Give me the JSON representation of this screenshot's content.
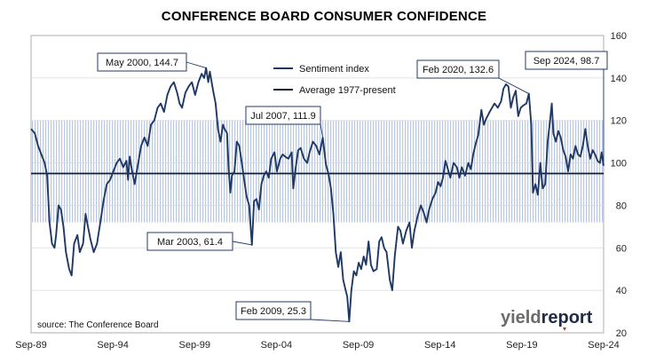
{
  "chart_data": {
    "type": "line",
    "title": "CONFERENCE BOARD CONSUMER CONFIDENCE",
    "x_tick_labels": [
      "Sep-89",
      "Sep-94",
      "Sep-99",
      "Sep-04",
      "Sep-09",
      "Sep-14",
      "Sep-19",
      "Sep-24"
    ],
    "x_range": [
      1989.67,
      2024.67
    ],
    "ylim": [
      20,
      160
    ],
    "y_ticks": [
      20,
      40,
      60,
      80,
      100,
      120,
      140,
      160
    ],
    "y_axis_side": "right",
    "shaded_band": [
      72,
      120
    ],
    "average_value": 95,
    "series": [
      {
        "name": "Sentiment index",
        "color": "#1f3864",
        "points": [
          [
            1989.67,
            116
          ],
          [
            1989.9,
            114
          ],
          [
            1990.1,
            108
          ],
          [
            1990.3,
            104
          ],
          [
            1990.5,
            100
          ],
          [
            1990.65,
            94
          ],
          [
            1990.8,
            72
          ],
          [
            1990.95,
            62
          ],
          [
            1991.1,
            60
          ],
          [
            1991.2,
            66
          ],
          [
            1991.35,
            80
          ],
          [
            1991.5,
            78
          ],
          [
            1991.65,
            70
          ],
          [
            1991.8,
            58
          ],
          [
            1992.0,
            50
          ],
          [
            1992.15,
            47
          ],
          [
            1992.3,
            62
          ],
          [
            1992.5,
            66
          ],
          [
            1992.65,
            58
          ],
          [
            1992.85,
            62
          ],
          [
            1993.0,
            76
          ],
          [
            1993.15,
            70
          ],
          [
            1993.3,
            64
          ],
          [
            1993.5,
            58
          ],
          [
            1993.7,
            62
          ],
          [
            1993.9,
            72
          ],
          [
            1994.1,
            82
          ],
          [
            1994.3,
            90
          ],
          [
            1994.5,
            92
          ],
          [
            1994.7,
            96
          ],
          [
            1994.9,
            100
          ],
          [
            1995.1,
            102
          ],
          [
            1995.3,
            98
          ],
          [
            1995.5,
            101
          ],
          [
            1995.6,
            92
          ],
          [
            1995.7,
            103
          ],
          [
            1995.85,
            96
          ],
          [
            1996.0,
            90
          ],
          [
            1996.2,
            99
          ],
          [
            1996.4,
            108
          ],
          [
            1996.6,
            112
          ],
          [
            1996.8,
            108
          ],
          [
            1997.0,
            118
          ],
          [
            1997.2,
            120
          ],
          [
            1997.4,
            126
          ],
          [
            1997.6,
            128
          ],
          [
            1997.8,
            124
          ],
          [
            1998.0,
            132
          ],
          [
            1998.2,
            136
          ],
          [
            1998.4,
            138
          ],
          [
            1998.6,
            133
          ],
          [
            1998.75,
            128
          ],
          [
            1998.9,
            126
          ],
          [
            1999.1,
            133
          ],
          [
            1999.3,
            136
          ],
          [
            1999.5,
            138
          ],
          [
            1999.7,
            132
          ],
          [
            1999.9,
            138
          ],
          [
            2000.1,
            142
          ],
          [
            2000.25,
            140
          ],
          [
            2000.37,
            144.7
          ],
          [
            2000.5,
            138
          ],
          [
            2000.6,
            143
          ],
          [
            2000.8,
            134
          ],
          [
            2000.95,
            128
          ],
          [
            2001.1,
            116
          ],
          [
            2001.25,
            110
          ],
          [
            2001.4,
            118
          ],
          [
            2001.5,
            116
          ],
          [
            2001.65,
            114
          ],
          [
            2001.75,
            97
          ],
          [
            2001.85,
            86
          ],
          [
            2001.95,
            94
          ],
          [
            2002.1,
            96
          ],
          [
            2002.25,
            110
          ],
          [
            2002.4,
            108
          ],
          [
            2002.55,
            100
          ],
          [
            2002.7,
            92
          ],
          [
            2002.85,
            84
          ],
          [
            2003.0,
            80
          ],
          [
            2003.1,
            69
          ],
          [
            2003.17,
            61.4
          ],
          [
            2003.3,
            82
          ],
          [
            2003.45,
            83
          ],
          [
            2003.6,
            78
          ],
          [
            2003.75,
            90
          ],
          [
            2003.9,
            94
          ],
          [
            2004.05,
            96
          ],
          [
            2004.2,
            93
          ],
          [
            2004.35,
            102
          ],
          [
            2004.55,
            105
          ],
          [
            2004.7,
            96
          ],
          [
            2004.9,
            102
          ],
          [
            2005.05,
            104
          ],
          [
            2005.2,
            103
          ],
          [
            2005.4,
            102
          ],
          [
            2005.6,
            105
          ],
          [
            2005.7,
            88
          ],
          [
            2005.85,
            98
          ],
          [
            2006.0,
            106
          ],
          [
            2006.15,
            107
          ],
          [
            2006.35,
            102
          ],
          [
            2006.55,
            100
          ],
          [
            2006.7,
            105
          ],
          [
            2006.9,
            110
          ],
          [
            2007.1,
            108
          ],
          [
            2007.3,
            104
          ],
          [
            2007.5,
            111.9
          ],
          [
            2007.7,
            99
          ],
          [
            2007.85,
            95
          ],
          [
            2008.0,
            88
          ],
          [
            2008.15,
            76
          ],
          [
            2008.3,
            58
          ],
          [
            2008.45,
            51
          ],
          [
            2008.6,
            58
          ],
          [
            2008.75,
            45
          ],
          [
            2008.9,
            40
          ],
          [
            2009.0,
            37
          ],
          [
            2009.12,
            25.3
          ],
          [
            2009.25,
            40
          ],
          [
            2009.4,
            49
          ],
          [
            2009.55,
            47
          ],
          [
            2009.7,
            53
          ],
          [
            2009.85,
            50
          ],
          [
            2010.0,
            56
          ],
          [
            2010.15,
            52
          ],
          [
            2010.3,
            63
          ],
          [
            2010.45,
            52
          ],
          [
            2010.6,
            49
          ],
          [
            2010.8,
            50
          ],
          [
            2010.95,
            63
          ],
          [
            2011.1,
            65
          ],
          [
            2011.25,
            60
          ],
          [
            2011.4,
            58
          ],
          [
            2011.6,
            45
          ],
          [
            2011.75,
            40
          ],
          [
            2011.9,
            56
          ],
          [
            2012.1,
            70
          ],
          [
            2012.25,
            68
          ],
          [
            2012.4,
            62
          ],
          [
            2012.6,
            68
          ],
          [
            2012.8,
            72
          ],
          [
            2012.95,
            60
          ],
          [
            2013.1,
            68
          ],
          [
            2013.3,
            75
          ],
          [
            2013.5,
            80
          ],
          [
            2013.7,
            76
          ],
          [
            2013.85,
            72
          ],
          [
            2014.0,
            78
          ],
          [
            2014.2,
            83
          ],
          [
            2014.4,
            86
          ],
          [
            2014.55,
            91
          ],
          [
            2014.7,
            89
          ],
          [
            2014.85,
            93
          ],
          [
            2015.0,
            101
          ],
          [
            2015.15,
            97
          ],
          [
            2015.3,
            93
          ],
          [
            2015.5,
            100
          ],
          [
            2015.7,
            98
          ],
          [
            2015.85,
            93
          ],
          [
            2016.0,
            98
          ],
          [
            2016.2,
            94
          ],
          [
            2016.4,
            100
          ],
          [
            2016.55,
            97
          ],
          [
            2016.7,
            104
          ],
          [
            2016.85,
            109
          ],
          [
            2017.0,
            113
          ],
          [
            2017.2,
            125
          ],
          [
            2017.35,
            118
          ],
          [
            2017.5,
            121
          ],
          [
            2017.7,
            124
          ],
          [
            2017.85,
            126
          ],
          [
            2018.0,
            128
          ],
          [
            2018.2,
            126
          ],
          [
            2018.4,
            129
          ],
          [
            2018.55,
            135
          ],
          [
            2018.7,
            137
          ],
          [
            2018.85,
            136
          ],
          [
            2019.0,
            126
          ],
          [
            2019.15,
            131
          ],
          [
            2019.3,
            134
          ],
          [
            2019.45,
            122
          ],
          [
            2019.6,
            126
          ],
          [
            2019.75,
            127
          ],
          [
            2019.95,
            128
          ],
          [
            2020.1,
            132.6
          ],
          [
            2020.25,
            118
          ],
          [
            2020.35,
            86
          ],
          [
            2020.5,
            90
          ],
          [
            2020.65,
            85
          ],
          [
            2020.8,
            100
          ],
          [
            2020.95,
            88
          ],
          [
            2021.1,
            90
          ],
          [
            2021.25,
            110
          ],
          [
            2021.4,
            120
          ],
          [
            2021.5,
            128
          ],
          [
            2021.6,
            114
          ],
          [
            2021.75,
            110
          ],
          [
            2021.9,
            115
          ],
          [
            2022.05,
            112
          ],
          [
            2022.2,
            106
          ],
          [
            2022.35,
            103
          ],
          [
            2022.5,
            96
          ],
          [
            2022.65,
            104
          ],
          [
            2022.8,
            102
          ],
          [
            2022.95,
            108
          ],
          [
            2023.1,
            104
          ],
          [
            2023.25,
            103
          ],
          [
            2023.4,
            108
          ],
          [
            2023.55,
            116
          ],
          [
            2023.7,
            108
          ],
          [
            2023.85,
            102
          ],
          [
            2024.0,
            106
          ],
          [
            2024.15,
            104
          ],
          [
            2024.3,
            101
          ],
          [
            2024.45,
            100
          ],
          [
            2024.55,
            105
          ],
          [
            2024.67,
            98.7
          ]
        ]
      },
      {
        "name": "Average 1977-present",
        "color": "#0d1b3d",
        "value": 95
      }
    ],
    "annotations": [
      {
        "label": "May 2000, 144.7",
        "x": 2000.37,
        "y": 144.7
      },
      {
        "label": "Jul 2007, 111.9",
        "x": 2007.5,
        "y": 111.9
      },
      {
        "label": "Mar 2003, 61.4",
        "x": 2003.17,
        "y": 61.4
      },
      {
        "label": "Feb 2009, 25.3",
        "x": 2009.12,
        "y": 25.3
      },
      {
        "label": "Feb 2020, 132.6",
        "x": 2020.1,
        "y": 132.6
      },
      {
        "label": "Sep 2024, 98.7",
        "x": 2024.67,
        "y": 98.7
      }
    ],
    "source": "source: The Conference Board",
    "logo": {
      "part1": "yield",
      "part2": "report",
      "color1": "#6b6b6b",
      "color2": "#1f2a44"
    },
    "colors": {
      "line": "#1f3864",
      "band": "#b9c7e6",
      "average": "#0d1b3d"
    }
  }
}
